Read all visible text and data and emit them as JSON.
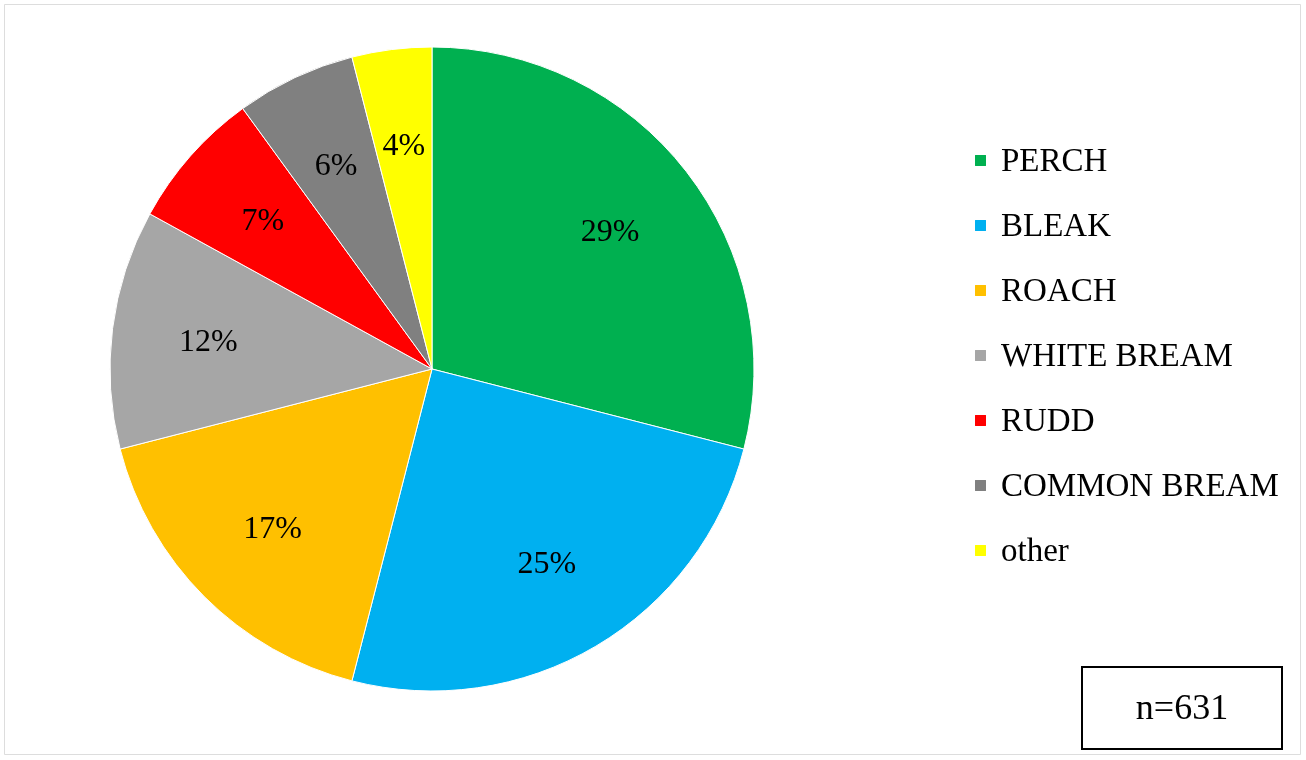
{
  "chart_data": {
    "type": "pie",
    "categories": [
      "PERCH",
      "BLEAK",
      "ROACH",
      "WHITE BREAM",
      "RUDD",
      "COMMON BREAM",
      "other"
    ],
    "values": [
      29,
      25,
      17,
      12,
      7,
      6,
      4
    ],
    "colors": [
      "#00b050",
      "#00b0f0",
      "#ffc000",
      "#a6a6a6",
      "#ff0000",
      "#808080",
      "#ffff00"
    ],
    "value_labels": [
      "29%",
      "25%",
      "17%",
      "12%",
      "7%",
      "6%",
      "4%"
    ],
    "legend": "right",
    "annotations": [
      "n=631"
    ]
  }
}
